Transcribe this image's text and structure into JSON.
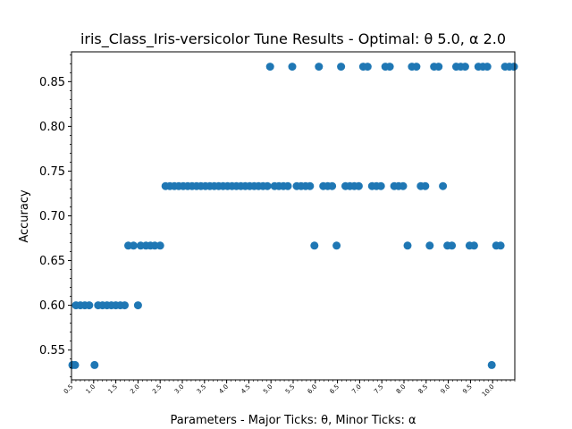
{
  "chart_data": {
    "type": "scatter",
    "title": "iris_Class_Iris-versicolor Tune Results - Optimal: θ 5.0, α 2.0",
    "xlabel": "Parameters - Major Ticks: θ, Minor Ticks: α",
    "ylabel": "Accuracy",
    "xlim": [
      0.5,
      10.5
    ],
    "ylim": [
      0.5167,
      0.8833
    ],
    "x_tick_labels": [
      "0.5",
      "1.0",
      "1.5",
      "2.0",
      "2.5",
      "3.0",
      "3.5",
      "4.0",
      "4.5",
      "5.0",
      "5.5",
      "6.0",
      "6.5",
      "7.0",
      "7.5",
      "8.0",
      "8.5",
      "9.0",
      "9.5",
      "10.0"
    ],
    "y_tick_labels": [
      "0.55",
      "0.60",
      "0.65",
      "0.70",
      "0.75",
      "0.80",
      "0.85"
    ],
    "y_ticks": [
      0.55,
      0.6,
      0.65,
      0.7,
      0.75,
      0.8,
      0.85
    ],
    "grid": false,
    "marker_color": "#1f77b4",
    "points": [
      [
        0.52,
        0.5333
      ],
      [
        0.58,
        0.5333
      ],
      [
        0.6,
        0.6
      ],
      [
        0.7,
        0.6
      ],
      [
        0.8,
        0.6
      ],
      [
        0.9,
        0.6
      ],
      [
        1.02,
        0.5333
      ],
      [
        1.1,
        0.6
      ],
      [
        1.2,
        0.6
      ],
      [
        1.3,
        0.6
      ],
      [
        1.4,
        0.6
      ],
      [
        1.5,
        0.6
      ],
      [
        1.6,
        0.6
      ],
      [
        1.7,
        0.6
      ],
      [
        1.78,
        0.6667
      ],
      [
        1.9,
        0.6667
      ],
      [
        2.0,
        0.6
      ],
      [
        2.06,
        0.6667
      ],
      [
        2.18,
        0.6667
      ],
      [
        2.28,
        0.6667
      ],
      [
        2.38,
        0.6667
      ],
      [
        2.5,
        0.6667
      ],
      [
        2.62,
        0.7333
      ],
      [
        2.72,
        0.7333
      ],
      [
        2.82,
        0.7333
      ],
      [
        2.92,
        0.7333
      ],
      [
        3.02,
        0.7333
      ],
      [
        3.12,
        0.7333
      ],
      [
        3.22,
        0.7333
      ],
      [
        3.32,
        0.7333
      ],
      [
        3.42,
        0.7333
      ],
      [
        3.52,
        0.7333
      ],
      [
        3.62,
        0.7333
      ],
      [
        3.72,
        0.7333
      ],
      [
        3.82,
        0.7333
      ],
      [
        3.92,
        0.7333
      ],
      [
        4.02,
        0.7333
      ],
      [
        4.12,
        0.7333
      ],
      [
        4.22,
        0.7333
      ],
      [
        4.32,
        0.7333
      ],
      [
        4.42,
        0.7333
      ],
      [
        4.52,
        0.7333
      ],
      [
        4.62,
        0.7333
      ],
      [
        4.72,
        0.7333
      ],
      [
        4.82,
        0.7333
      ],
      [
        4.92,
        0.7333
      ],
      [
        4.98,
        0.8667
      ],
      [
        5.08,
        0.7333
      ],
      [
        5.18,
        0.7333
      ],
      [
        5.28,
        0.7333
      ],
      [
        5.38,
        0.7333
      ],
      [
        5.48,
        0.8667
      ],
      [
        5.58,
        0.7333
      ],
      [
        5.68,
        0.7333
      ],
      [
        5.78,
        0.7333
      ],
      [
        5.88,
        0.7333
      ],
      [
        5.98,
        0.6667
      ],
      [
        6.08,
        0.8667
      ],
      [
        6.18,
        0.7333
      ],
      [
        6.28,
        0.7333
      ],
      [
        6.38,
        0.7333
      ],
      [
        6.48,
        0.6667
      ],
      [
        6.58,
        0.8667
      ],
      [
        6.68,
        0.7333
      ],
      [
        6.78,
        0.7333
      ],
      [
        6.88,
        0.7333
      ],
      [
        6.98,
        0.7333
      ],
      [
        7.08,
        0.8667
      ],
      [
        7.18,
        0.8667
      ],
      [
        7.28,
        0.7333
      ],
      [
        7.38,
        0.7333
      ],
      [
        7.48,
        0.7333
      ],
      [
        7.58,
        0.8667
      ],
      [
        7.68,
        0.8667
      ],
      [
        7.78,
        0.7333
      ],
      [
        7.88,
        0.7333
      ],
      [
        7.98,
        0.7333
      ],
      [
        8.08,
        0.6667
      ],
      [
        8.18,
        0.8667
      ],
      [
        8.28,
        0.8667
      ],
      [
        8.38,
        0.7333
      ],
      [
        8.48,
        0.7333
      ],
      [
        8.58,
        0.6667
      ],
      [
        8.68,
        0.8667
      ],
      [
        8.78,
        0.8667
      ],
      [
        8.88,
        0.7333
      ],
      [
        8.98,
        0.6667
      ],
      [
        9.08,
        0.6667
      ],
      [
        9.18,
        0.8667
      ],
      [
        9.28,
        0.8667
      ],
      [
        9.38,
        0.8667
      ],
      [
        9.48,
        0.6667
      ],
      [
        9.58,
        0.6667
      ],
      [
        9.68,
        0.8667
      ],
      [
        9.78,
        0.8667
      ],
      [
        9.88,
        0.8667
      ],
      [
        9.98,
        0.5333
      ],
      [
        10.08,
        0.6667
      ],
      [
        10.18,
        0.6667
      ],
      [
        10.28,
        0.8667
      ],
      [
        10.38,
        0.8667
      ],
      [
        10.48,
        0.8667
      ]
    ]
  }
}
